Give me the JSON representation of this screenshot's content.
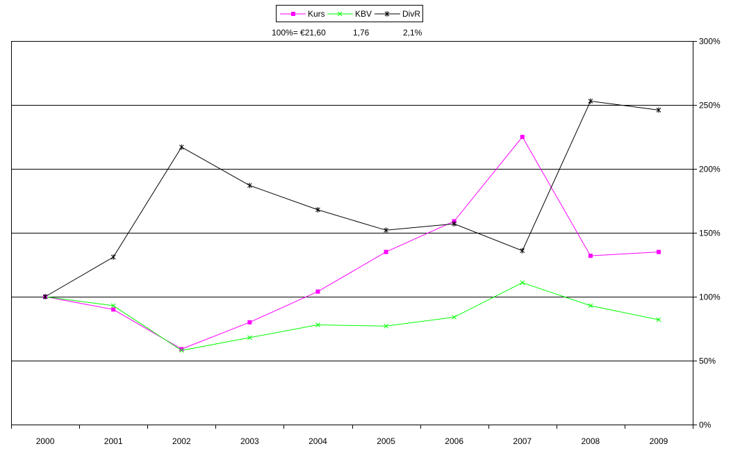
{
  "chart_data": {
    "type": "line",
    "categories": [
      "2000",
      "2001",
      "2002",
      "2003",
      "2004",
      "2005",
      "2006",
      "2007",
      "2008",
      "2009"
    ],
    "y_axis": {
      "position": "right",
      "ylim": [
        0,
        300
      ],
      "ticks": [
        0,
        50,
        100,
        150,
        200,
        250,
        300
      ],
      "tick_labels": [
        "0%",
        "50%",
        "100%",
        "150%",
        "200%",
        "250%",
        "300%"
      ],
      "gridlines": [
        50,
        100,
        150,
        200,
        250,
        300
      ]
    },
    "grid": "horizontal",
    "legend_position": "top-center",
    "base_values": {
      "label": "100%= €21,60",
      "kbv": "1,76",
      "divr": "2,1%"
    },
    "series": [
      {
        "name": "Kurs",
        "color": "#ff00ff",
        "marker": "square",
        "values": [
          100,
          90,
          59,
          80,
          104,
          135,
          159,
          225,
          132,
          135
        ]
      },
      {
        "name": "KBV",
        "color": "#00ff00",
        "marker": "x",
        "values": [
          100,
          93,
          58,
          68,
          78,
          77,
          84,
          111,
          93,
          82
        ]
      },
      {
        "name": "DivR",
        "color": "#000000",
        "marker": "star",
        "values": [
          100,
          131,
          217,
          187,
          168,
          152,
          157,
          136,
          253,
          246
        ]
      }
    ]
  }
}
